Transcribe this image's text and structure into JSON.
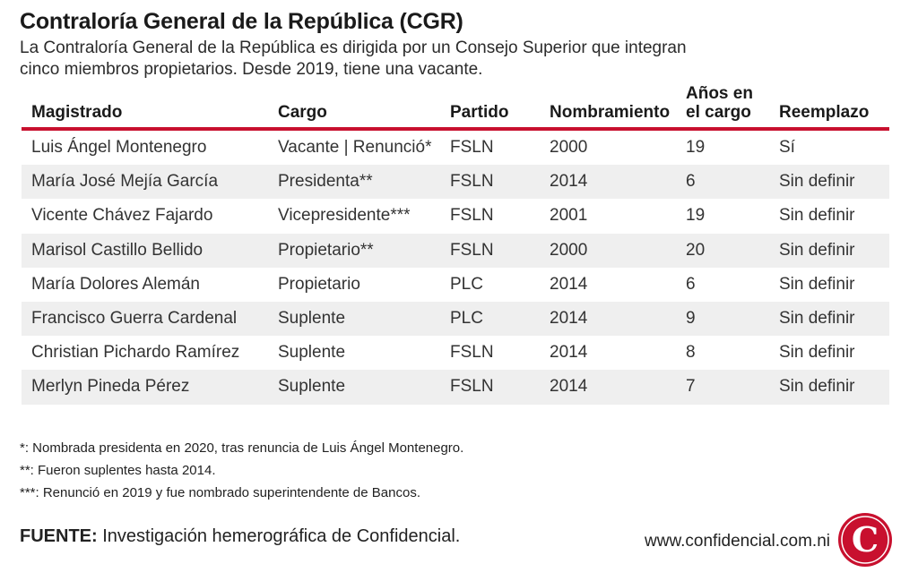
{
  "header": {
    "title": "Contraloría General de la República (CGR)",
    "subtitle": "La Contraloría General de la República es dirigida por un Consejo Superior que integran cinco miembros propietarios. Desde 2019, tiene una vacante."
  },
  "table": {
    "columns": [
      "Magistrado",
      "Cargo",
      "Partido",
      "Nombramiento",
      "Años en el cargo",
      "Reemplazo"
    ],
    "columns_lines": {
      "years_line1": "Años en",
      "years_line2": "el cargo"
    },
    "rows": [
      [
        "Luis Ángel Montenegro",
        "Vacante | Renunció*",
        "FSLN",
        "2000",
        "19",
        "Sí"
      ],
      [
        "María José Mejía García",
        "Presidenta**",
        "FSLN",
        "2014",
        "6",
        "Sin definir"
      ],
      [
        "Vicente Chávez Fajardo",
        "Vicepresidente***",
        "FSLN",
        "2001",
        "19",
        "Sin definir"
      ],
      [
        "Marisol Castillo Bellido",
        "Propietario**",
        "FSLN",
        "2000",
        "20",
        "Sin definir"
      ],
      [
        "María Dolores Alemán",
        "Propietario",
        "PLC",
        "2014",
        "6",
        "Sin definir"
      ],
      [
        "Francisco Guerra Cardenal",
        "Suplente",
        "PLC",
        "2014",
        "9",
        "Sin definir"
      ],
      [
        "Christian Pichardo Ramírez",
        "Suplente",
        "FSLN",
        "2014",
        "8",
        "Sin definir"
      ],
      [
        "Merlyn Pineda Pérez",
        "Suplente",
        "FSLN",
        "2014",
        "7",
        "Sin definir"
      ]
    ]
  },
  "notes": [
    "*: Nombrada presidenta en 2020, tras renuncia de Luis Ángel Montenegro.",
    "**: Fueron suplentes hasta 2014.",
    "***: Renunció en 2019 y fue nombrado superintendente de Bancos."
  ],
  "footer": {
    "source_label": "FUENTE:",
    "source_text": " Investigación hemerográfica de Confidencial.",
    "website": "www.confidencial.com.ni",
    "logo_letter": "C",
    "logo_icon": "confidencial-logo-icon"
  },
  "colors": {
    "accent": "#c8102e",
    "row_shade": "#efefef"
  }
}
